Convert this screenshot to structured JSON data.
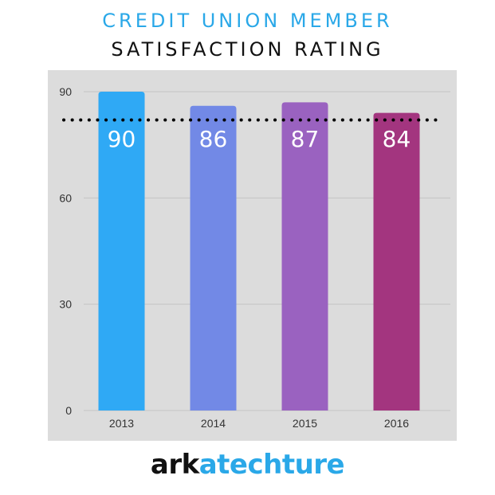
{
  "header": {
    "title_line1": "CREDIT UNION MEMBER",
    "title_line2": "SATISFACTION RATING",
    "title_line1_color": "#2aa8e8",
    "title_line2_color": "#111111"
  },
  "chart_data": {
    "type": "bar",
    "categories": [
      "2013",
      "2014",
      "2015",
      "2016"
    ],
    "values": [
      90,
      86,
      87,
      84
    ],
    "data_labels": [
      "90",
      "86",
      "87",
      "84"
    ],
    "bar_colors": [
      "#2fa9f5",
      "#7289e6",
      "#9a62c0",
      "#a3357f"
    ],
    "yticks": [
      "0",
      "30",
      "60",
      "90"
    ],
    "ylim": [
      0,
      90
    ],
    "reference_line": {
      "value": 82,
      "style": "dotted",
      "color": "#000000"
    },
    "grid": true,
    "background": "#dcdcdc"
  },
  "footer": {
    "logo_part1": "ark",
    "logo_part2": "atechture",
    "logo_part1_color": "#111111",
    "logo_part2_color": "#2aa8e8"
  }
}
